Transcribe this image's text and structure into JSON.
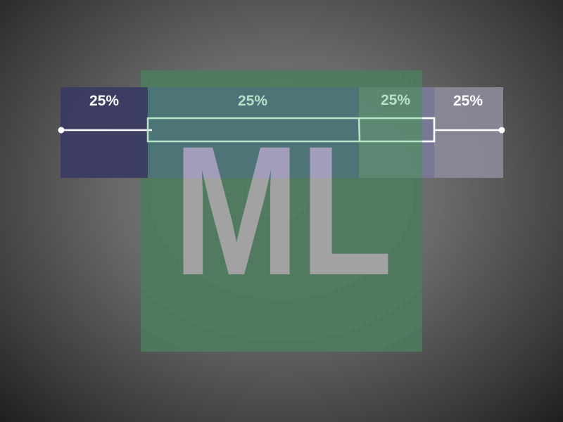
{
  "logo_text": "ML",
  "quartiles": [
    {
      "label": "25%",
      "color": "#3b3b62"
    },
    {
      "label": "25%",
      "color": "#4b6f78"
    },
    {
      "label": "25%",
      "color": "#5b8279"
    },
    {
      "label": "25%",
      "color": "#8a8898"
    }
  ],
  "colors": {
    "square": "#4d7a5d",
    "logo": "#a2a2a2",
    "logo_in_band": "#a19dbb",
    "box_stroke": "#b5e6c8",
    "whisker": "#ffffff"
  }
}
